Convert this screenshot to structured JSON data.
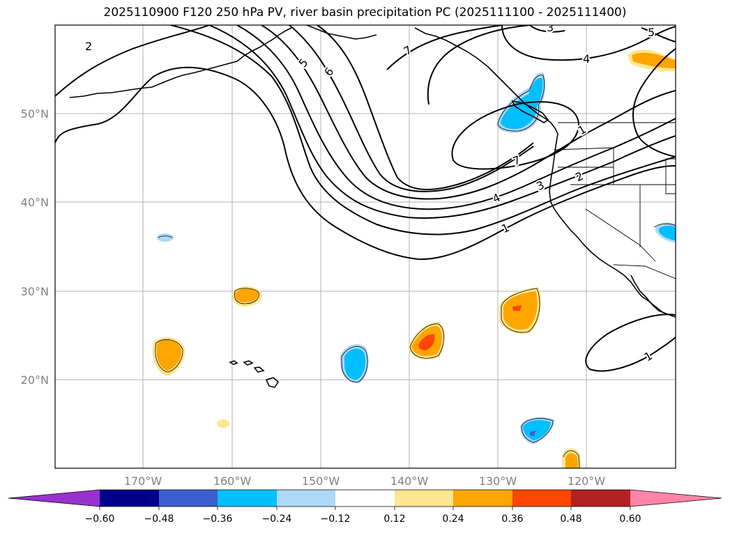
{
  "title": "2025110900 F120 250 hPa PV, river basin precipitation PC (2025111100 - 2025111400)",
  "map": {
    "lat_labels": [
      "50°N",
      "40°N",
      "30°N",
      "20°N"
    ],
    "lon_labels": [
      "170°W",
      "160°W",
      "150°W",
      "140°W",
      "130°W",
      "120°W"
    ],
    "pv_contour_labels": [
      "2",
      "5",
      "6",
      "7",
      "3",
      "5",
      "4",
      "1",
      "7",
      "4",
      "3",
      "2",
      "1",
      "1"
    ]
  },
  "colorbar": {
    "colors": [
      "#9932cc",
      "#00008b",
      "#3a5fcd",
      "#00bfff",
      "#add8f7",
      "#ffffff",
      "#ffe58f",
      "#ffa500",
      "#ff4500",
      "#b22222",
      "#ff85a8"
    ],
    "labels": [
      "−0.60",
      "−0.48",
      "−0.36",
      "−0.24",
      "−0.12",
      "0.12",
      "0.24",
      "0.36",
      "0.48",
      "0.60"
    ]
  }
}
